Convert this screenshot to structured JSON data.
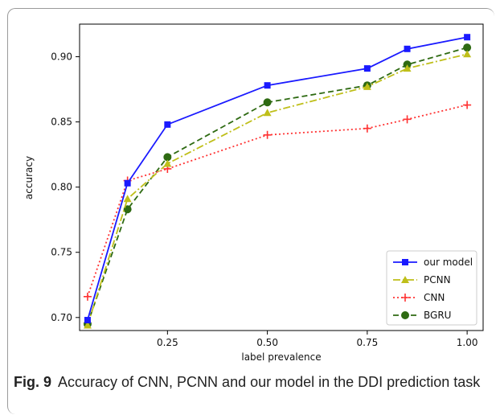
{
  "chart_data": {
    "type": "line",
    "xlabel": "label prevalence",
    "ylabel": "accuracy",
    "xlim": [
      0.03,
      1.04
    ],
    "ylim": [
      0.69,
      0.925
    ],
    "xticks": [
      0.25,
      0.5,
      0.75,
      1.0
    ],
    "xtick_labels": [
      "0.25",
      "0.50",
      "0.75",
      "1.00"
    ],
    "yticks": [
      0.7,
      0.75,
      0.8,
      0.85,
      0.9
    ],
    "ytick_labels": [
      "0.70",
      "0.75",
      "0.80",
      "0.85",
      "0.90"
    ],
    "legend_position": "bottom-right",
    "grid": false,
    "x": [
      0.05,
      0.15,
      0.25,
      0.5,
      0.75,
      0.85,
      1.0
    ],
    "series": [
      {
        "name": "our model",
        "color": "#1a1aff",
        "style": "solid",
        "marker": "square",
        "values": [
          0.698,
          0.803,
          0.848,
          0.878,
          0.891,
          0.906,
          0.915
        ]
      },
      {
        "name": "PCNN",
        "color": "#bfbf1a",
        "style": "dashdot",
        "marker": "triangle",
        "values": [
          0.694,
          0.791,
          0.818,
          0.857,
          0.877,
          0.891,
          0.902
        ]
      },
      {
        "name": "CNN",
        "color": "#ff3333",
        "style": "dotted",
        "marker": "plus",
        "values": [
          0.716,
          0.805,
          0.814,
          0.84,
          0.845,
          0.852,
          0.863
        ]
      },
      {
        "name": "BGRU",
        "color": "#2e6a12",
        "style": "dashed",
        "marker": "circle",
        "values": [
          0.695,
          0.783,
          0.823,
          0.865,
          0.878,
          0.894,
          0.907
        ]
      }
    ]
  },
  "caption": {
    "label": "Fig. 9",
    "text": "Accuracy of CNN, PCNN and our model in the DDI prediction task"
  }
}
